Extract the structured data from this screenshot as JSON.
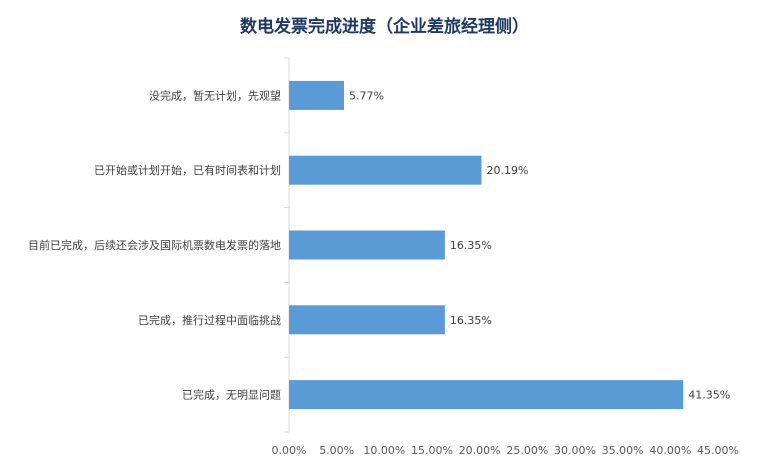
{
  "chart_data": {
    "type": "bar",
    "orientation": "horizontal",
    "title": "数电发票完成进度（企业差旅经理侧）",
    "categories": [
      "没完成，暂无计划，先观望",
      "已开始或计划开始，已有时间表和计划",
      "目前已完成，后续还会涉及国际机票数电发票的落地",
      "已完成，推行过程中面临挑战",
      "已完成，无明显问题"
    ],
    "values": [
      5.77,
      20.19,
      16.35,
      16.35,
      41.35
    ],
    "data_labels": [
      "5.77%",
      "20.19%",
      "16.35%",
      "16.35%",
      "41.35%"
    ],
    "xlim": [
      0,
      45
    ],
    "x_ticks": [
      "0.00%",
      "5.00%",
      "10.00%",
      "15.00%",
      "20.00%",
      "25.00%",
      "30.00%",
      "35.00%",
      "40.00%",
      "45.00%"
    ],
    "bar_color": "#5b9bd5",
    "grid": false,
    "legend": "none"
  }
}
